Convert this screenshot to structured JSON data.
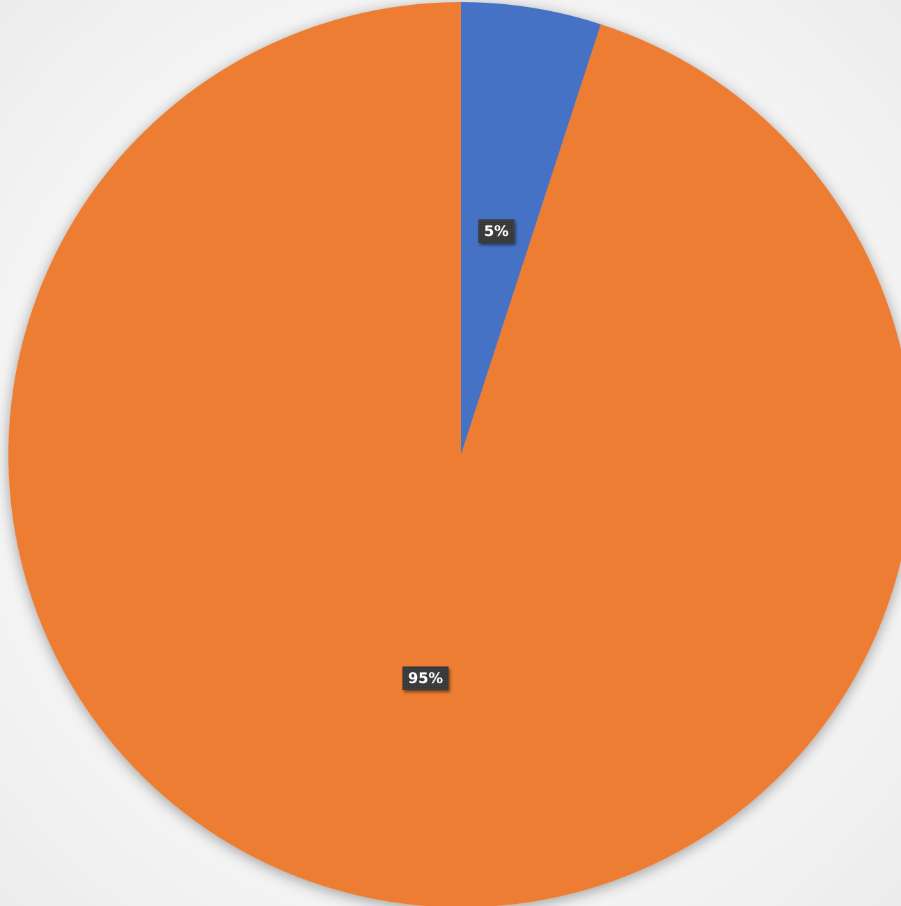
{
  "chart_data": {
    "type": "pie",
    "categories": [
      "",
      ""
    ],
    "values": [
      5,
      95
    ],
    "data_labels": [
      "5%",
      "95%"
    ],
    "colors": [
      "#4472C4",
      "#ED7D31"
    ],
    "label_box_color": "#3A3A3A",
    "label_text_color": "#FFFFFF",
    "start_angle_deg": 0,
    "direction": "clockwise",
    "title": "",
    "legend": "none"
  }
}
